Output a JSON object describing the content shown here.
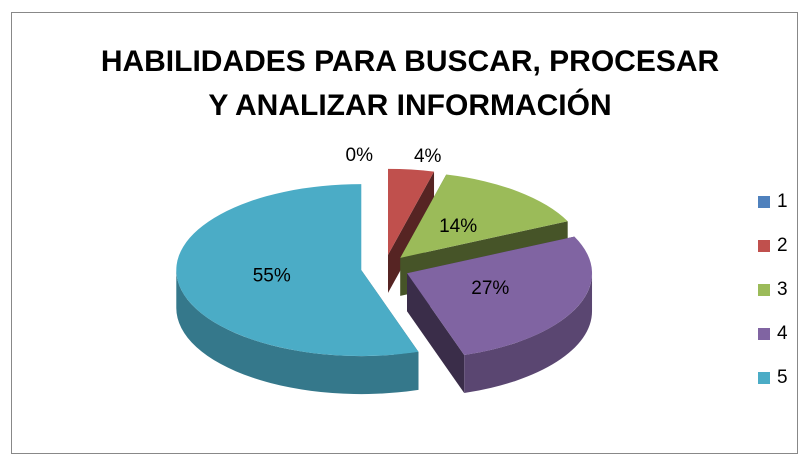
{
  "chart_data": {
    "type": "pie",
    "title": "HABILIDADES PARA BUSCAR, PROCESAR Y ANALIZAR INFORMACIÓN",
    "categories": [
      "1",
      "2",
      "3",
      "4",
      "5"
    ],
    "values": [
      0,
      4,
      14,
      27,
      55
    ],
    "value_labels": [
      "0%",
      "4%",
      "14%",
      "27%",
      "55%"
    ],
    "colors": [
      "#4f81bd",
      "#c0504d",
      "#9bbb59",
      "#8064a2",
      "#4bacc6"
    ],
    "legend": "right"
  }
}
